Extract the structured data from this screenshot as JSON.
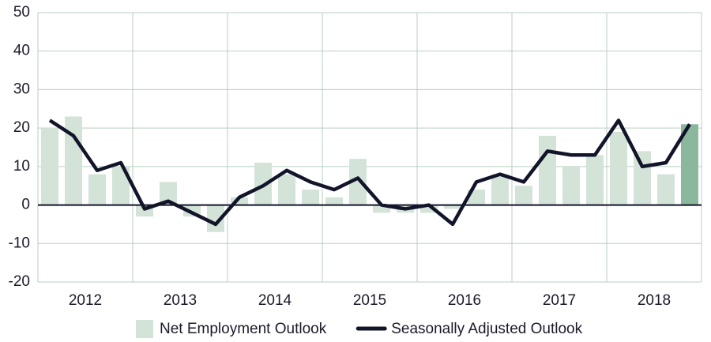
{
  "chart_data": {
    "type": "bar_line",
    "categories": [
      null,
      "2012",
      null,
      null,
      null,
      "2013",
      null,
      null,
      null,
      "2014",
      null,
      null,
      null,
      "2015",
      null,
      null,
      null,
      "2016",
      null,
      null,
      null,
      "2017",
      null,
      null,
      null,
      "2018",
      null,
      null
    ],
    "series": [
      {
        "name": "Net Employment Outlook",
        "type": "bar",
        "color": "#d3e3d7",
        "colors": [
          "#d3e3d7",
          "#d3e3d7",
          "#d3e3d7",
          "#d3e3d7",
          "#d3e3d7",
          "#d3e3d7",
          "#d3e3d7",
          "#d3e3d7",
          "#d3e3d7",
          "#d3e3d7",
          "#d3e3d7",
          "#d3e3d7",
          "#d3e3d7",
          "#d3e3d7",
          "#d3e3d7",
          "#d3e3d7",
          "#d3e3d7",
          "#d3e3d7",
          "#d3e3d7",
          "#d3e3d7",
          "#d3e3d7",
          "#d3e3d7",
          "#d3e3d7",
          "#d3e3d7",
          "#d3e3d7",
          "#d3e3d7",
          "#d3e3d7",
          "#8bb89d"
        ],
        "values": [
          20,
          23,
          8,
          10,
          -3,
          6,
          -3,
          -7,
          2,
          11,
          8,
          4,
          2,
          12,
          -2,
          -2,
          -2,
          -1,
          4,
          8,
          5,
          18,
          10,
          13,
          19,
          14,
          8,
          21
        ]
      },
      {
        "name": "Seasonally Adjusted Outlook",
        "type": "line",
        "color": "#12142a",
        "values": [
          22,
          18,
          9,
          11,
          -1,
          1,
          -2,
          -5,
          2,
          5,
          9,
          6,
          4,
          7,
          0,
          -1,
          0,
          -5,
          6,
          8,
          6,
          14,
          13,
          13,
          22,
          10,
          11,
          21
        ]
      }
    ],
    "ylim": [
      -20,
      50
    ],
    "yticks": [
      -20,
      -10,
      0,
      10,
      20,
      30,
      40,
      50
    ],
    "grid": true,
    "legend": "bottom"
  }
}
